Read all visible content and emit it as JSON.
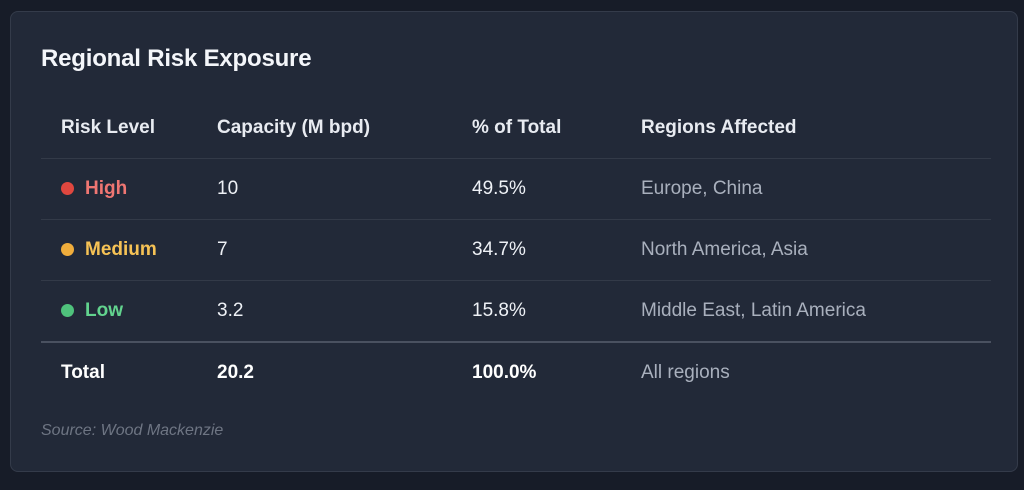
{
  "card": {
    "title": "Regional Risk Exposure",
    "source": "Source: Wood Mackenzie"
  },
  "table": {
    "headers": [
      "Risk Level",
      "Capacity (M bpd)",
      "% of Total",
      "Regions Affected"
    ],
    "rows": [
      {
        "level": "High",
        "capacity": "10",
        "percent": "49.5%",
        "regions": "Europe, China",
        "color": "#e0473f",
        "text_color": "#f07672"
      },
      {
        "level": "Medium",
        "capacity": "7",
        "percent": "34.7%",
        "regions": "North America, Asia",
        "color": "#f0ad3c",
        "text_color": "#f6c255"
      },
      {
        "level": "Low",
        "capacity": "3.2",
        "percent": "15.8%",
        "regions": "Middle East, Latin America",
        "color": "#4fc27c",
        "text_color": "#62d38e"
      }
    ],
    "total": {
      "label": "Total",
      "capacity": "20.2",
      "percent": "100.0%",
      "regions": "All regions"
    }
  }
}
